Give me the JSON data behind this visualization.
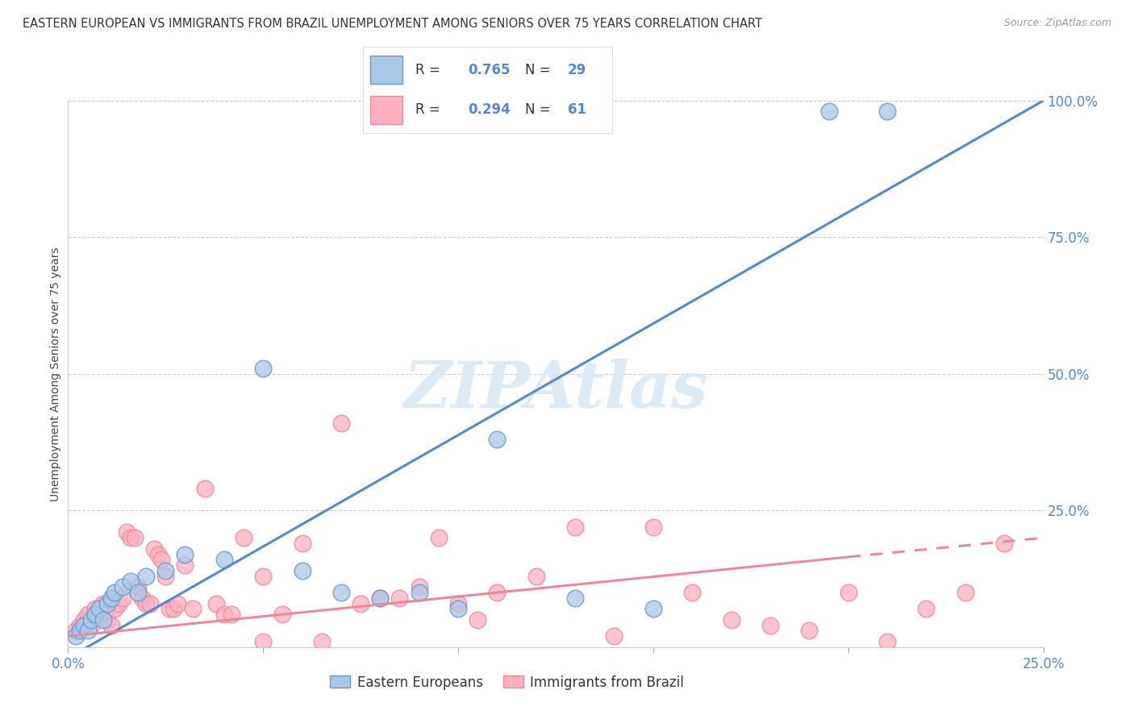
{
  "title": "EASTERN EUROPEAN VS IMMIGRANTS FROM BRAZIL UNEMPLOYMENT AMONG SENIORS OVER 75 YEARS CORRELATION CHART",
  "source": "Source: ZipAtlas.com",
  "ylabel": "Unemployment Among Seniors over 75 years",
  "xlim": [
    0.0,
    0.25
  ],
  "ylim": [
    0.0,
    1.0
  ],
  "xticks": [
    0.0,
    0.05,
    0.1,
    0.15,
    0.2,
    0.25
  ],
  "yticks": [
    0.0,
    0.25,
    0.5,
    0.75,
    1.0
  ],
  "blue_color": "#A8C8E8",
  "blue_edge_color": "#6699CC",
  "pink_color": "#FFB0C0",
  "pink_edge_color": "#EE8899",
  "blue_line_color": "#5588CC",
  "pink_line_color": "#EE8899",
  "legend_blue_R": "0.765",
  "legend_blue_N": "29",
  "legend_pink_R": "0.294",
  "legend_pink_N": "61",
  "watermark": "ZIPAtlas",
  "blue_line_x0": 0.0,
  "blue_line_y0": -0.02,
  "blue_line_x1": 0.25,
  "blue_line_y1": 1.0,
  "pink_line_x0": 0.0,
  "pink_line_y0": 0.02,
  "pink_line_x1": 0.25,
  "pink_line_y1": 0.2,
  "blue_scatter_x": [
    0.002,
    0.003,
    0.004,
    0.005,
    0.006,
    0.007,
    0.008,
    0.009,
    0.01,
    0.011,
    0.012,
    0.014,
    0.016,
    0.018,
    0.02,
    0.025,
    0.03,
    0.04,
    0.05,
    0.06,
    0.07,
    0.08,
    0.09,
    0.1,
    0.11,
    0.13,
    0.15,
    0.195,
    0.21
  ],
  "blue_scatter_y": [
    0.02,
    0.03,
    0.04,
    0.03,
    0.05,
    0.06,
    0.07,
    0.05,
    0.08,
    0.09,
    0.1,
    0.11,
    0.12,
    0.1,
    0.13,
    0.14,
    0.17,
    0.16,
    0.51,
    0.14,
    0.1,
    0.09,
    0.1,
    0.07,
    0.38,
    0.09,
    0.07,
    0.98,
    0.98
  ],
  "pink_scatter_x": [
    0.002,
    0.003,
    0.004,
    0.005,
    0.006,
    0.007,
    0.008,
    0.009,
    0.01,
    0.011,
    0.012,
    0.013,
    0.014,
    0.015,
    0.016,
    0.017,
    0.018,
    0.019,
    0.02,
    0.021,
    0.022,
    0.023,
    0.024,
    0.025,
    0.026,
    0.027,
    0.028,
    0.03,
    0.032,
    0.035,
    0.038,
    0.04,
    0.042,
    0.045,
    0.05,
    0.055,
    0.06,
    0.065,
    0.07,
    0.08,
    0.09,
    0.1,
    0.11,
    0.12,
    0.13,
    0.14,
    0.15,
    0.16,
    0.17,
    0.18,
    0.19,
    0.2,
    0.21,
    0.22,
    0.23,
    0.24,
    0.05,
    0.075,
    0.085,
    0.095,
    0.105
  ],
  "pink_scatter_y": [
    0.03,
    0.04,
    0.05,
    0.06,
    0.04,
    0.07,
    0.06,
    0.08,
    0.05,
    0.04,
    0.07,
    0.08,
    0.09,
    0.21,
    0.2,
    0.2,
    0.11,
    0.09,
    0.08,
    0.08,
    0.18,
    0.17,
    0.16,
    0.13,
    0.07,
    0.07,
    0.08,
    0.15,
    0.07,
    0.29,
    0.08,
    0.06,
    0.06,
    0.2,
    0.13,
    0.06,
    0.19,
    0.01,
    0.41,
    0.09,
    0.11,
    0.08,
    0.1,
    0.13,
    0.22,
    0.02,
    0.22,
    0.1,
    0.05,
    0.04,
    0.03,
    0.1,
    0.01,
    0.07,
    0.1,
    0.19,
    0.01,
    0.08,
    0.09,
    0.2,
    0.05
  ],
  "background_color": "#FFFFFF",
  "grid_color": "#CCCCCC"
}
